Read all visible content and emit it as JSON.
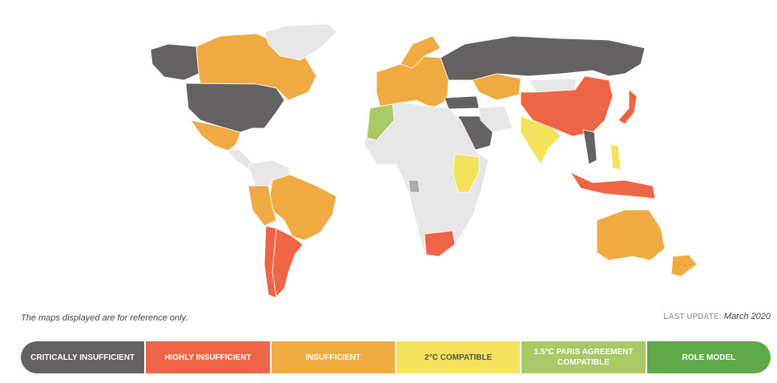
{
  "colors": {
    "critically": "#656061",
    "highly": "#ee6545",
    "insufficient": "#f0aa42",
    "two_c": "#f5e25c",
    "one_five": "#a8c966",
    "role_model": "#5fa94a",
    "no_data": "#e6e6e6",
    "other": "#a7a9ab"
  },
  "map": {
    "countries": [
      {
        "name": "Alaska (USA)",
        "rating": "critically"
      },
      {
        "name": "Canada",
        "rating": "insufficient"
      },
      {
        "name": "Greenland",
        "rating": "no_data"
      },
      {
        "name": "United States",
        "rating": "critically"
      },
      {
        "name": "Mexico",
        "rating": "insufficient"
      },
      {
        "name": "Central America",
        "rating": "no_data"
      },
      {
        "name": "Northern South America",
        "rating": "no_data"
      },
      {
        "name": "Brazil",
        "rating": "insufficient"
      },
      {
        "name": "Peru",
        "rating": "insufficient"
      },
      {
        "name": "Argentina",
        "rating": "highly"
      },
      {
        "name": "Chile",
        "rating": "highly"
      },
      {
        "name": "Europe",
        "rating": "insufficient"
      },
      {
        "name": "Norway",
        "rating": "insufficient"
      },
      {
        "name": "Russia",
        "rating": "critically"
      },
      {
        "name": "Kazakhstan",
        "rating": "insufficient"
      },
      {
        "name": "Mongolia",
        "rating": "no_data"
      },
      {
        "name": "China",
        "rating": "highly"
      },
      {
        "name": "Japan",
        "rating": "highly"
      },
      {
        "name": "Turkey",
        "rating": "critically"
      },
      {
        "name": "Saudi Arabia",
        "rating": "critically"
      },
      {
        "name": "Iran",
        "rating": "no_data"
      },
      {
        "name": "India",
        "rating": "two_c"
      },
      {
        "name": "Vietnam",
        "rating": "critically"
      },
      {
        "name": "Philippines",
        "rating": "two_c"
      },
      {
        "name": "Indonesia",
        "rating": "highly"
      },
      {
        "name": "Australia",
        "rating": "insufficient"
      },
      {
        "name": "New Zealand",
        "rating": "insufficient"
      },
      {
        "name": "Africa",
        "rating": "no_data"
      },
      {
        "name": "Morocco",
        "rating": "one_five"
      },
      {
        "name": "Ethiopia",
        "rating": "two_c"
      },
      {
        "name": "Gabon",
        "rating": "other"
      },
      {
        "name": "South Africa",
        "rating": "highly"
      }
    ]
  },
  "footer": {
    "note": "The maps displayed are for reference only.",
    "last_update_label": "LAST UPDATE:",
    "last_update_value": "March 2020"
  },
  "legend": [
    {
      "label": "CRITICALLY INSUFFICIENT",
      "key": "critically"
    },
    {
      "label": "HIGHLY INSUFFICIENT",
      "key": "highly"
    },
    {
      "label": "INSUFFICIENT",
      "key": "insufficient"
    },
    {
      "label": "2°C COMPATIBLE",
      "key": "two_c"
    },
    {
      "label": "1.5°C PARIS AGREEMENT COMPATIBLE",
      "key": "one_five"
    },
    {
      "label": "ROLE MODEL",
      "key": "role_model"
    }
  ]
}
